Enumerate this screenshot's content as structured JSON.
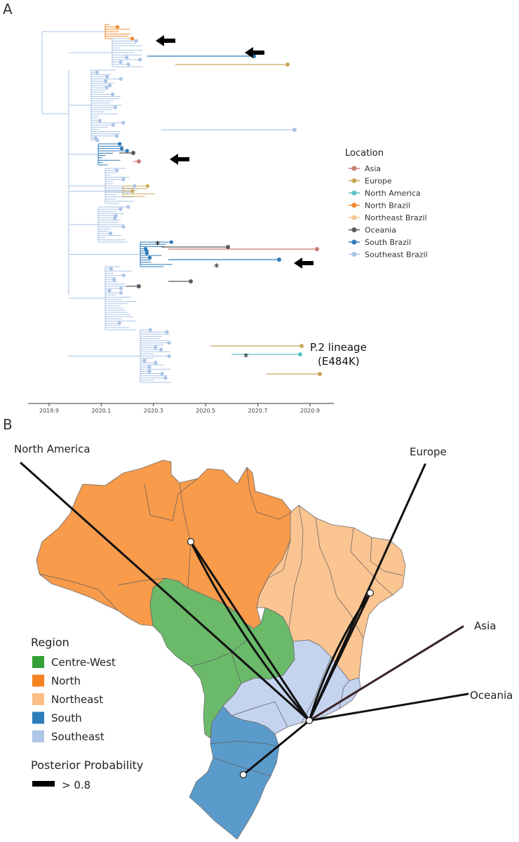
{
  "panel_a": {
    "letter": "A",
    "legend": {
      "title": "Location",
      "items": [
        {
          "label": "Asia",
          "color": "#c97b74"
        },
        {
          "label": "Europe",
          "color": "#c9a85c"
        },
        {
          "label": "North America",
          "color": "#5fc3c6"
        },
        {
          "label": "North Brazil",
          "color": "#f0872b"
        },
        {
          "label": "Northeast Brazil",
          "color": "#f8c58d"
        },
        {
          "label": "Oceania",
          "color": "#5a5a5a"
        },
        {
          "label": "South Brazil",
          "color": "#2f7bb8"
        },
        {
          "label": "Southeast Brazil",
          "color": "#aac3e6"
        }
      ]
    },
    "axis_ticks": [
      "2019.9",
      "2020.1",
      "2020.3",
      "2020.5",
      "2020.7",
      "2020.9"
    ],
    "annotation_line1": "P.2 lineage",
    "annotation_line2": "(E484K)",
    "asterisk": "*"
  },
  "panel_b": {
    "letter": "B",
    "locations": {
      "north_america": "North America",
      "europe": "Europe",
      "asia": "Asia",
      "oceania": "Oceania"
    },
    "region_legend": {
      "title": "Region",
      "items": [
        {
          "label": "Centre-West",
          "color": "#35a037"
        },
        {
          "label": "North",
          "color": "#f68221"
        },
        {
          "label": "Northeast",
          "color": "#fdbe85"
        },
        {
          "label": "South",
          "color": "#2d7ebb"
        },
        {
          "label": "Southeast",
          "color": "#aec7e8"
        }
      ]
    },
    "posterior_title": "Posterior Probability",
    "posterior_label": "> 0.8"
  }
}
